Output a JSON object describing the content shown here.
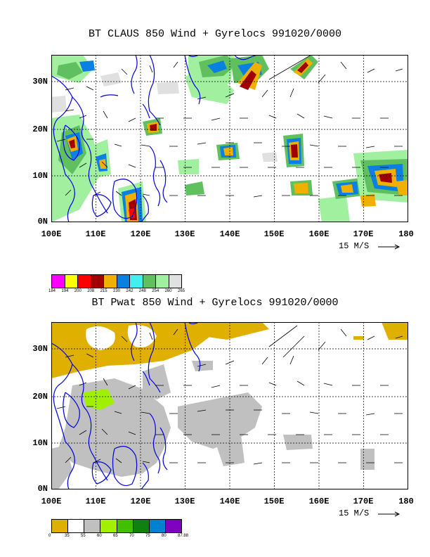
{
  "panels": [
    {
      "title": "BT CLAUS 850 Wind + Gyrelocs 991020/0000",
      "y_ticks": [
        "30N",
        "20N",
        "10N",
        "0N"
      ],
      "x_ticks": [
        "100E",
        "110E",
        "120E",
        "130E",
        "140E",
        "150E",
        "160E",
        "170E",
        "180"
      ],
      "scale_label": "15 M/S",
      "colorbar": {
        "colors": [
          "#ff00ff",
          "#ffff00",
          "#ff0000",
          "#a00000",
          "#f0b000",
          "#0a80e0",
          "#40f0f0",
          "#60c060",
          "#a0f0a0",
          "#e0e0e0"
        ],
        "labels": [
          "184",
          "194",
          "200",
          "208",
          "215",
          "230",
          "242",
          "248",
          "254",
          "260",
          "265"
        ]
      }
    },
    {
      "title": "BT Pwat 850 Wind + Gyrelocs 991020/0000",
      "y_ticks": [
        "30N",
        "20N",
        "10N",
        "0N"
      ],
      "x_ticks": [
        "100E",
        "110E",
        "120E",
        "130E",
        "140E",
        "150E",
        "160E",
        "170E",
        "180"
      ],
      "scale_label": "15 M/S",
      "colorbar": {
        "colors": [
          "#e0b000",
          "#ffffff",
          "#c0c0c0",
          "#a0f000",
          "#40c000",
          "#108010",
          "#0080d0",
          "#8000c0"
        ],
        "labels": [
          "0",
          "35",
          "55",
          "60",
          "65",
          "70",
          "75",
          "80",
          "87.88"
        ]
      }
    }
  ]
}
